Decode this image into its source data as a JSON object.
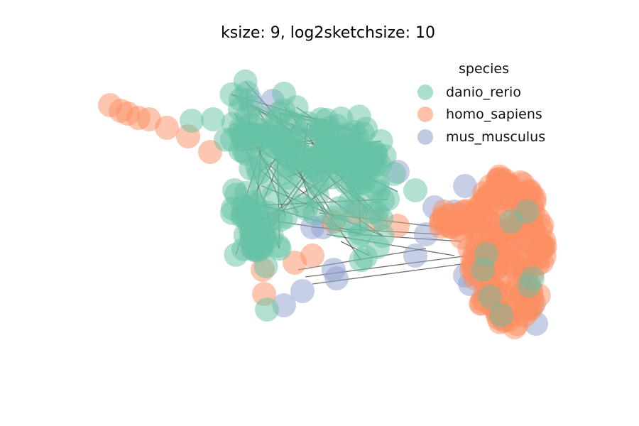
{
  "title": "ksize: 9, log2sketchsize: 10",
  "legend": {
    "title": "species",
    "entries": [
      {
        "label": "danio_rerio",
        "color": "#66c2a5"
      },
      {
        "label": "homo_sapiens",
        "color": "#fc8d62"
      },
      {
        "label": "mus_musculus",
        "color": "#8da0cb"
      }
    ]
  },
  "edge_color": "#333333"
}
